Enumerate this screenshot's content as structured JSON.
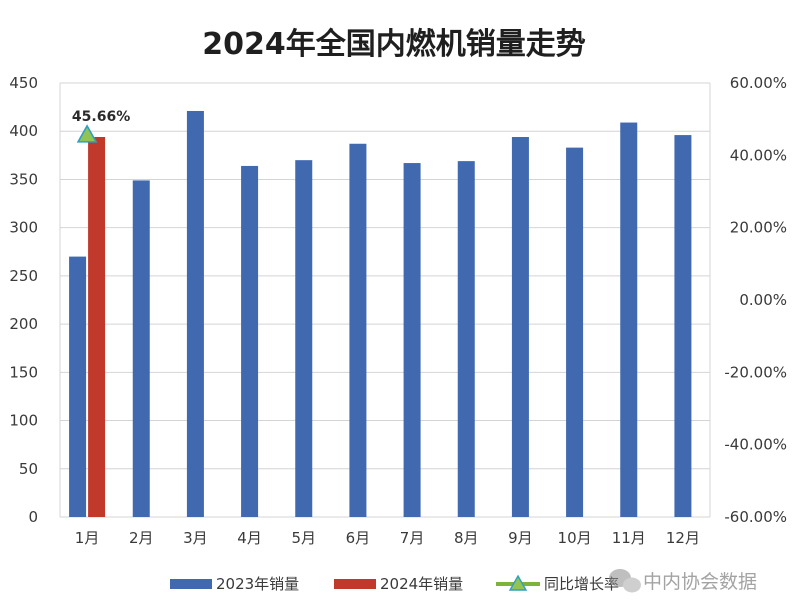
{
  "chart_data": {
    "type": "bar",
    "title": "2024年全国内燃机销量走势",
    "categories": [
      "1月",
      "2月",
      "3月",
      "4月",
      "5月",
      "6月",
      "7月",
      "8月",
      "9月",
      "10月",
      "11月",
      "12月"
    ],
    "series": [
      {
        "name": "2023年销量",
        "type": "bar",
        "axis": "left",
        "color": "#4169AF",
        "values": [
          270,
          349,
          421,
          364,
          370,
          387,
          367,
          369,
          394,
          383,
          409,
          396
        ]
      },
      {
        "name": "2024年销量",
        "type": "bar",
        "axis": "left",
        "color": "#C0392B",
        "values": [
          394,
          null,
          null,
          null,
          null,
          null,
          null,
          null,
          null,
          null,
          null,
          null
        ]
      },
      {
        "name": "同比增长率",
        "type": "line",
        "axis": "right",
        "color": "#7DB33A",
        "values": [
          45.66,
          null,
          null,
          null,
          null,
          null,
          null,
          null,
          null,
          null,
          null,
          null
        ]
      }
    ],
    "data_labels": [
      {
        "category": "1月",
        "series": "同比增长率",
        "text": "45.66%"
      }
    ],
    "y_left": {
      "ylim": [
        0,
        450
      ],
      "ticks": [
        "0",
        "50",
        "100",
        "150",
        "200",
        "250",
        "300",
        "350",
        "400",
        "450"
      ]
    },
    "y_right": {
      "ylim": [
        -60,
        60
      ],
      "ticks": [
        "-60.00%",
        "-40.00%",
        "-20.00%",
        "0.00%",
        "20.00%",
        "40.00%",
        "60.00%"
      ]
    },
    "grid": true,
    "legend_position": "bottom"
  },
  "watermark": {
    "text": "中内协会数据",
    "icon": "wechat-icon"
  }
}
